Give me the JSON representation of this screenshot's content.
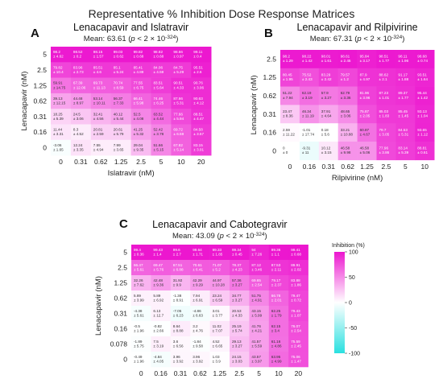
{
  "figure_title": "Representative % Inhibition Dose Response Matrices",
  "colorbar": {
    "title": "Inhibition (%)",
    "ticks": [
      100,
      50,
      0,
      -50,
      -100
    ],
    "range": [
      -100,
      100
    ],
    "colors": {
      "low": "#29e0e0",
      "mid": "#ffffff",
      "high": "#ec16cf"
    }
  },
  "chart_data": [
    {
      "type": "heatmap",
      "panel": "A",
      "title": "Lenacapavir and Islatravir",
      "subtitle_prefix": "Mean: 63.61 (",
      "subtitle_p": "p",
      "subtitle_suffix": " < 2 × 10",
      "subtitle_exp": "-324",
      "subtitle_close": ")",
      "xlabel": "Islatravir (nM)",
      "ylabel": "Lenacapavir (nM)",
      "x_ticks": [
        "0",
        "0.31",
        "0.62",
        "1.25",
        "2.5",
        "5",
        "10",
        "20"
      ],
      "y_ticks": [
        "5",
        "2.5",
        "1.25",
        "0.62",
        "0.31",
        "0.16",
        "0"
      ],
      "means": [
        [
          98.2,
          98.52,
          98.15,
          99.03,
          99.82,
          98.82,
          98.66,
          99.11
        ],
        [
          79.82,
          83.96,
          85.51,
          85.1,
          85.41,
          84.06,
          84.75,
          95.51
        ],
        [
          59.91,
          67.39,
          69.73,
          70.74,
          77.55,
          83.51,
          90.51,
          90.76
        ],
        [
          39.13,
          44.48,
          53.14,
          56.37,
          66.41,
          74.46,
          87.66,
          90.63
        ],
        [
          18.25,
          24.5,
          32.41,
          40.12,
          52.5,
          63.52,
          77.66,
          88.51
        ],
        [
          11.44,
          8.3,
          20.81,
          20.61,
          41.25,
          52.42,
          69.72,
          84.58
        ],
        [
          -3.06,
          12.24,
          7.55,
          7.99,
          29.04,
          51.66,
          67.82,
          83.15
        ]
      ],
      "sds": [
        [
          4.62,
          0.2,
          1.57,
          0.62,
          0.68,
          0.68,
          0.97,
          0.4
        ],
        [
          10.4,
          2.73,
          4.6,
          5.24,
          4.89,
          4.59,
          5.29,
          2.6
        ],
        [
          14.75,
          12.06,
          11.13,
          8.59,
          6.75,
          5.64,
          4.33,
          3.06
        ],
        [
          12.15,
          8.97,
          10.11,
          7.33,
          5.98,
          6.25,
          5.31,
          4.12
        ],
        [
          5.39,
          3.06,
          4.56,
          5.44,
          4.08,
          4.44,
          5.94,
          4.47
        ],
        [
          3.31,
          4.52,
          2.59,
          5.79,
          5.32,
          3.78,
          6.59,
          3.57
        ],
        [
          1.65,
          3.35,
          4.94,
          3.65,
          9.35,
          5.15,
          5.14,
          3.01
        ]
      ]
    },
    {
      "type": "heatmap",
      "panel": "B",
      "title": "Lenacapavir and Rilpivirine",
      "subtitle_prefix": "Mean: 67.31 (",
      "subtitle_p": "p",
      "subtitle_suffix": " < 2 × 10",
      "subtitle_exp": "-324",
      "subtitle_close": ")",
      "xlabel": "Rilpivirine (nM)",
      "ylabel": "Lenacapavir (nM)",
      "x_ticks": [
        "0",
        "0.16",
        "0.31",
        "0.62",
        "1.25",
        "2.5",
        "5",
        "10"
      ],
      "y_ticks": [
        "2.5",
        "1.25",
        "0.62",
        "0.31",
        "0.16",
        "0"
      ],
      "means": [
        [
          98.2,
          98.22,
          98.01,
          98.61,
          95.84,
          98.51,
          98.11,
          98.68
        ],
        [
          80.45,
          75.52,
          83.29,
          79.57,
          87.9,
          88.62,
          91.17,
          93.51
        ],
        [
          51.22,
          62.19,
          57.9,
          62.79,
          81.96,
          87.23,
          89.37,
          95.44
        ],
        [
          23.47,
          46.34,
          37.91,
          48.65,
          75.87,
          85.03,
          85.45,
          93.13
        ],
        [
          2.59,
          -1.01,
          0.18,
          33.21,
          60.87,
          79.7,
          84.53,
          93.65
        ],
        [
          0,
          -9.31,
          10.12,
          46.58,
          46.58,
          77.96,
          83.14,
          88.81
        ]
      ],
      "sds": [
        [
          1.29,
          1.42,
          1.61,
          2.45,
          3.17,
          1.77,
          1.96,
          0.74
        ],
        [
          1.95,
          2.43,
          2.42,
          1.2,
          4.97,
          2.1,
          1.88,
          1.64
        ],
        [
          7.94,
          3.19,
          3.27,
          3.36,
          3.96,
          1.01,
          1.77,
          1.42
        ],
        [
          8.36,
          11.19,
          4.64,
          3.06,
          2.05,
          1.83,
          1.45,
          1.04
        ],
        [
          11.22,
          17.74,
          5.6,
          10.88,
          4.67,
          3.05,
          5.31,
          1.12
        ],
        [
          0,
          11,
          3.15,
          9.98,
          5.06,
          3.86,
          5.39,
          0.61
        ]
      ]
    },
    {
      "type": "heatmap",
      "panel": "C",
      "title": "Lenacapavir and Cabotegravir",
      "subtitle_prefix": "Mean: 43.09 (",
      "subtitle_p": "p",
      "subtitle_suffix": " < 2 × 10",
      "subtitle_exp": "-324",
      "subtitle_close": ")",
      "xlabel": "Cabotegravir (nM)",
      "ylabel": "Lenacapavir (nM)",
      "x_ticks": [
        "0",
        "0.16",
        "0.31",
        "0.62",
        "1.25",
        "2.5",
        "5",
        "10",
        "20"
      ],
      "y_ticks": [
        "5",
        "2.5",
        "1.25",
        "0.62",
        "0.31",
        "0.16",
        "0.078",
        "0"
      ],
      "means": [
        [
          99.4,
          99.43,
          99.6,
          99.64,
          99.33,
          99.34,
          94,
          99.36,
          99.41
        ],
        [
          66.47,
          69.47,
          67.51,
          70.61,
          71.07,
          78.37,
          87.12,
          87.53,
          89.91
        ],
        [
          32.26,
          42.48,
          31.92,
          42.29,
          44.97,
          57.36,
          69.65,
          79.17,
          83.88
        ],
        [
          5.89,
          5.89,
          -1.38,
          7.94,
          23.24,
          34.77,
          51.75,
          66.78,
          79.47
        ],
        [
          -4.38,
          6.13,
          -7.05,
          -4.86,
          3.01,
          20.53,
          43.15,
          62.25,
          79.43
        ],
        [
          -0.5,
          -0.82,
          8.64,
          3.2,
          11.02,
          25.19,
          41.76,
          62.15,
          76.07
        ],
        [
          -1.89,
          7.5,
          3.6,
          -1.84,
          4.52,
          29.13,
          41.57,
          61.16,
          75.59
        ],
        [
          -0.49,
          -4.84,
          3.96,
          3.96,
          1.03,
          24.15,
          43.57,
          63.95,
          75.06
        ]
      ],
      "sds": [
        [
          0.36,
          1.4,
          2.7,
          1.71,
          1.85,
          0.45,
          7.26,
          1.1,
          0.68
        ],
        [
          5.61,
          5.76,
          6.88,
          6.41,
          5.2,
          4.23,
          3.46,
          2.11,
          2.02
        ],
        [
          7.62,
          9.36,
          9.9,
          9.29,
          10.28,
          3.27,
          2.54,
          2.37,
          1.86
        ],
        [
          3.99,
          6.92,
          8.91,
          6.91,
          6.59,
          3.27,
          4.91,
          2.01,
          0.72
        ],
        [
          5.61,
          12.7,
          6.23,
          6.63,
          3.77,
          4.33,
          5.99,
          1.79,
          1.07
        ],
        [
          1.96,
          2.66,
          8.88,
          4.76,
          7.07,
          5.74,
          4.21,
          3.4,
          2.54
        ],
        [
          5.75,
          3.19,
          6.56,
          9.58,
          6.65,
          3.27,
          5.59,
          4.86,
          2.45
        ],
        [
          1.96,
          4.05,
          3.92,
          3.92,
          3.9,
          3.03,
          3.97,
          4.99,
          1.47
        ]
      ]
    }
  ]
}
